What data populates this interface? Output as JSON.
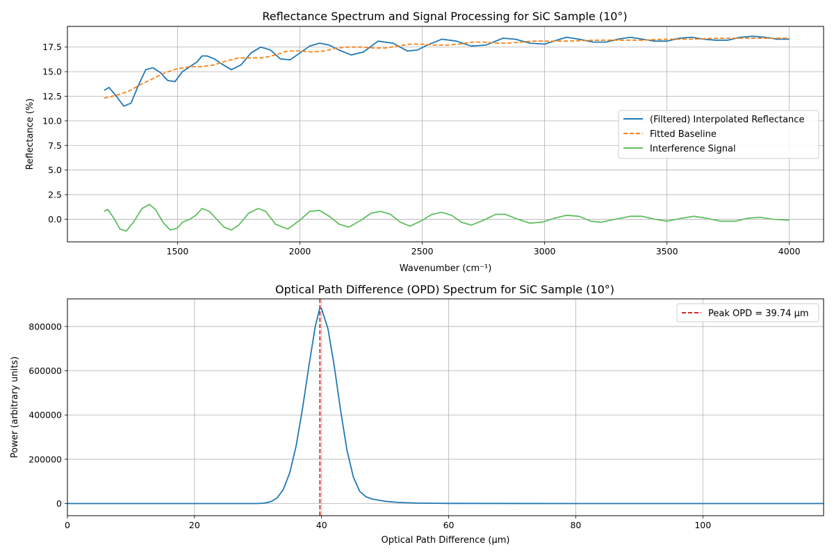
{
  "chart_data": [
    {
      "type": "line",
      "title": "Reflectance Spectrum and Signal Processing for SiC Sample (10°)",
      "xlabel": "Wavenumber (cm⁻¹)",
      "ylabel": "Reflectance (%)",
      "xlim": [
        1050,
        4140
      ],
      "ylim": [
        -2.3,
        19.6
      ],
      "xticks": [
        1500,
        2000,
        2500,
        3000,
        3500,
        4000
      ],
      "yticks": [
        0.0,
        2.5,
        5.0,
        7.5,
        10.0,
        12.5,
        15.0,
        17.5
      ],
      "grid": true,
      "legend_position": "center-right",
      "series": [
        {
          "name": "(Filtered) Interpolated Reflectance",
          "color": "#1f77b4",
          "style": "solid",
          "x": [
            1200,
            1220,
            1250,
            1280,
            1310,
            1340,
            1370,
            1400,
            1430,
            1460,
            1490,
            1520,
            1550,
            1580,
            1600,
            1620,
            1650,
            1680,
            1720,
            1760,
            1800,
            1840,
            1880,
            1920,
            1960,
            2000,
            2040,
            2080,
            2120,
            2160,
            2210,
            2260,
            2320,
            2380,
            2440,
            2480,
            2520,
            2580,
            2640,
            2700,
            2760,
            2830,
            2880,
            2940,
            3000,
            3050,
            3090,
            3140,
            3200,
            3250,
            3300,
            3350,
            3400,
            3450,
            3500,
            3550,
            3600,
            3650,
            3700,
            3750,
            3800,
            3850,
            3900,
            3950,
            4000
          ],
          "values": [
            13.1,
            13.4,
            12.5,
            11.5,
            11.8,
            13.6,
            15.2,
            15.4,
            14.9,
            14.1,
            14.0,
            15.0,
            15.5,
            16.0,
            16.6,
            16.6,
            16.3,
            15.8,
            15.2,
            15.7,
            16.9,
            17.5,
            17.2,
            16.3,
            16.2,
            16.9,
            17.6,
            17.9,
            17.7,
            17.2,
            16.7,
            17.0,
            18.1,
            17.9,
            17.1,
            17.2,
            17.7,
            18.3,
            18.1,
            17.6,
            17.7,
            18.4,
            18.3,
            17.9,
            17.8,
            18.2,
            18.5,
            18.3,
            18.0,
            18.0,
            18.3,
            18.5,
            18.3,
            18.1,
            18.1,
            18.4,
            18.5,
            18.3,
            18.2,
            18.2,
            18.5,
            18.6,
            18.5,
            18.3,
            18.3
          ]
        },
        {
          "name": "Fitted Baseline",
          "color": "#ff7f0e",
          "style": "dashed",
          "x": [
            1200,
            1250,
            1300,
            1350,
            1400,
            1450,
            1500,
            1550,
            1600,
            1650,
            1700,
            1750,
            1800,
            1850,
            1900,
            1950,
            2000,
            2050,
            2100,
            2150,
            2200,
            2250,
            2300,
            2350,
            2400,
            2450,
            2500,
            2550,
            2600,
            2650,
            2700,
            2750,
            2800,
            2850,
            2900,
            2950,
            3000,
            3100,
            3200,
            3300,
            3400,
            3500,
            3600,
            3700,
            3800,
            3900,
            4000
          ],
          "values": [
            12.3,
            12.6,
            13.0,
            13.7,
            14.3,
            14.9,
            15.3,
            15.5,
            15.5,
            15.7,
            16.1,
            16.4,
            16.4,
            16.4,
            16.7,
            17.1,
            17.1,
            17.0,
            17.1,
            17.4,
            17.5,
            17.5,
            17.4,
            17.4,
            17.6,
            17.8,
            17.8,
            17.7,
            17.7,
            17.8,
            18.0,
            18.0,
            17.9,
            17.9,
            18.0,
            18.1,
            18.1,
            18.1,
            18.2,
            18.2,
            18.2,
            18.3,
            18.3,
            18.4,
            18.4,
            18.4,
            18.4
          ]
        },
        {
          "name": "Interference Signal",
          "color": "#5fbe5f",
          "style": "solid",
          "x": [
            1200,
            1215,
            1240,
            1265,
            1290,
            1320,
            1355,
            1385,
            1410,
            1440,
            1470,
            1500,
            1520,
            1550,
            1575,
            1600,
            1630,
            1660,
            1690,
            1720,
            1750,
            1790,
            1830,
            1860,
            1900,
            1950,
            2000,
            2040,
            2080,
            2120,
            2160,
            2200,
            2250,
            2290,
            2330,
            2370,
            2410,
            2450,
            2500,
            2540,
            2580,
            2620,
            2660,
            2700,
            2750,
            2800,
            2840,
            2890,
            2940,
            2990,
            3040,
            3090,
            3140,
            3190,
            3230,
            3290,
            3350,
            3400,
            3450,
            3500,
            3560,
            3610,
            3660,
            3720,
            3780,
            3830,
            3880,
            3930,
            4000
          ],
          "values": [
            0.8,
            1.0,
            0.1,
            -1.0,
            -1.2,
            -0.3,
            1.1,
            1.5,
            1.0,
            -0.3,
            -1.1,
            -0.9,
            -0.3,
            0.0,
            0.4,
            1.1,
            0.8,
            0.0,
            -0.8,
            -1.1,
            -0.6,
            0.6,
            1.1,
            0.8,
            -0.5,
            -1.0,
            -0.1,
            0.8,
            0.9,
            0.3,
            -0.5,
            -0.8,
            -0.1,
            0.6,
            0.8,
            0.5,
            -0.3,
            -0.7,
            -0.1,
            0.5,
            0.7,
            0.4,
            -0.3,
            -0.6,
            -0.1,
            0.5,
            0.5,
            0.0,
            -0.4,
            -0.3,
            0.1,
            0.4,
            0.3,
            -0.2,
            -0.3,
            0.0,
            0.3,
            0.3,
            0.0,
            -0.2,
            0.1,
            0.3,
            0.1,
            -0.2,
            -0.2,
            0.1,
            0.2,
            0.0,
            -0.1
          ]
        }
      ]
    },
    {
      "type": "line",
      "title": "Optical Path Difference (OPD) Spectrum for SiC Sample (10°)",
      "xlabel": "Optical Path Difference (µm)",
      "ylabel": "Power (arbitrary units)",
      "xlim": [
        0,
        119
      ],
      "ylim": [
        -55000,
        925000
      ],
      "xticks": [
        0,
        20,
        40,
        60,
        80,
        100
      ],
      "yticks": [
        0,
        200000,
        400000,
        600000,
        800000
      ],
      "grid": true,
      "legend_position": "top-right",
      "series": [
        {
          "name": "",
          "color": "#1f77b4",
          "style": "solid",
          "x": [
            0,
            10,
            20,
            30,
            31,
            32,
            33,
            34,
            35,
            36,
            37,
            38,
            39,
            39.74,
            40,
            41,
            42,
            43,
            44,
            45,
            46,
            47,
            48,
            50,
            52,
            55,
            60,
            80,
            100,
            119
          ],
          "values": [
            0,
            0,
            0,
            0,
            2000,
            8000,
            25000,
            65000,
            140000,
            260000,
            430000,
            620000,
            800000,
            885000,
            880000,
            790000,
            620000,
            420000,
            240000,
            120000,
            55000,
            30000,
            20000,
            10000,
            5000,
            2000,
            500,
            0,
            0,
            0
          ]
        }
      ],
      "annotation": {
        "label": "Peak OPD = 39.74 µm",
        "x": 39.74,
        "color": "#d62728",
        "style": "dashed"
      }
    }
  ]
}
